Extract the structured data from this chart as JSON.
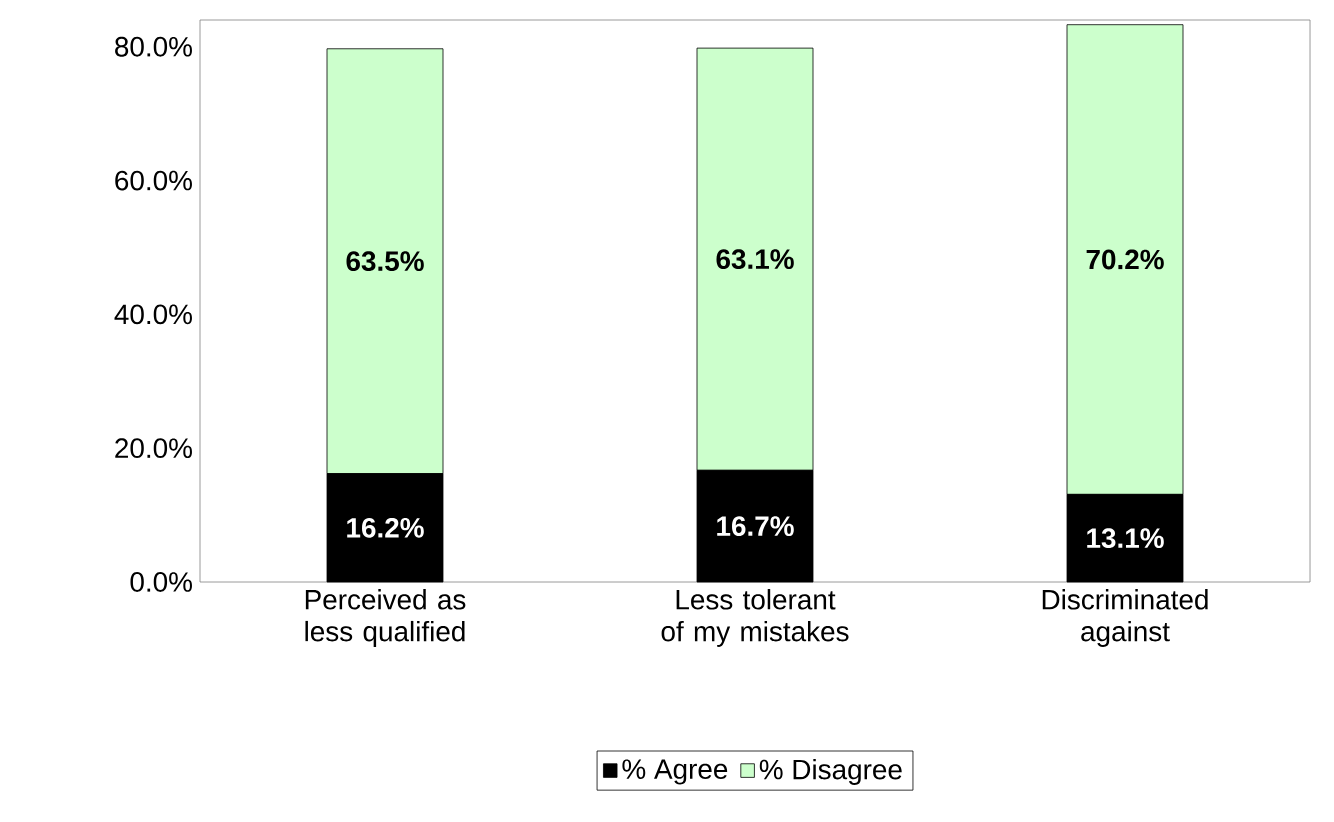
{
  "chart_data": {
    "type": "bar",
    "stacked": true,
    "categories": [
      "Perceived as less qualified",
      "Less tolerant of my mistakes",
      "Discriminated against"
    ],
    "series": [
      {
        "name": "% Agree",
        "color": "#000000",
        "values": [
          16.2,
          16.7,
          13.1
        ],
        "value_labels": [
          "16.2%",
          "16.7%",
          "13.1%"
        ]
      },
      {
        "name": "% Disagree",
        "color": "#ccffcc",
        "values": [
          63.5,
          63.1,
          70.2
        ],
        "value_labels": [
          "63.5%",
          "63.1%",
          "70.2%"
        ]
      }
    ],
    "ylim": [
      0,
      84
    ],
    "yticks": [
      {
        "value": 0,
        "label": "0.0%"
      },
      {
        "value": 20,
        "label": "20.0%"
      },
      {
        "value": 40,
        "label": "40.0%"
      },
      {
        "value": 60,
        "label": "60.0%"
      },
      {
        "value": 80,
        "label": "80.0%"
      }
    ],
    "legend": "bottom"
  }
}
